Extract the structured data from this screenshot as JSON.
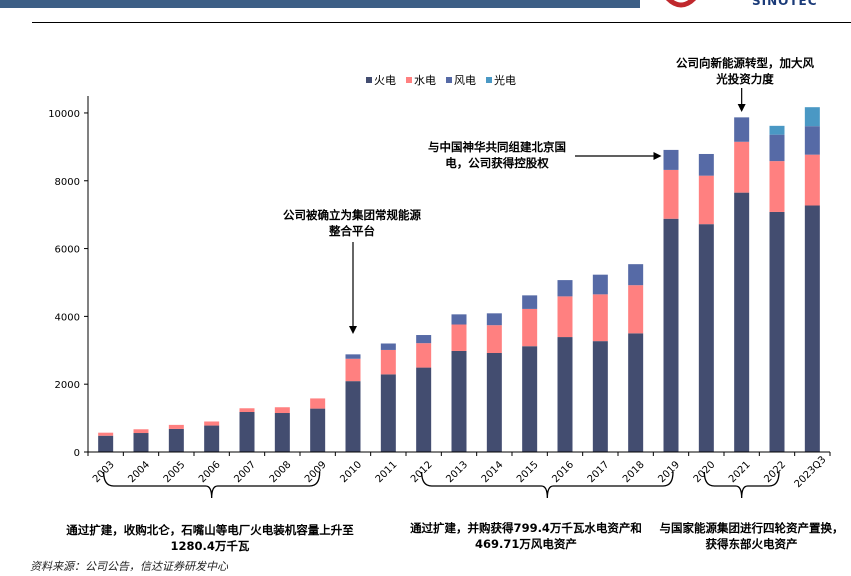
{
  "header": {
    "logo_text": "SINOTEC"
  },
  "chart_data": {
    "type": "bar",
    "stacked": true,
    "categories": [
      "2003",
      "2004",
      "2005",
      "2006",
      "2007",
      "2008",
      "2009",
      "2010",
      "2011",
      "2012",
      "2013",
      "2014",
      "2015",
      "2016",
      "2017",
      "2018",
      "2019",
      "2020",
      "2021",
      "2022",
      "2023Q3"
    ],
    "series": [
      {
        "name": "火电",
        "color": "#434d70",
        "values": [
          480,
          560,
          680,
          780,
          1180,
          1150,
          1280,
          2090,
          2290,
          2490,
          2980,
          2920,
          3120,
          3390,
          3270,
          3500,
          6880,
          6720,
          7650,
          7080,
          7270
        ]
      },
      {
        "name": "水电",
        "color": "#ff8080",
        "values": [
          90,
          110,
          120,
          120,
          110,
          170,
          300,
          660,
          720,
          720,
          780,
          820,
          1100,
          1200,
          1380,
          1420,
          1440,
          1430,
          1500,
          1500,
          1500
        ]
      },
      {
        "name": "风电",
        "color": "#566aa6",
        "values": [
          0,
          0,
          0,
          0,
          0,
          0,
          0,
          130,
          190,
          240,
          300,
          350,
          400,
          480,
          580,
          620,
          590,
          640,
          720,
          780,
          840
        ]
      },
      {
        "name": "光电",
        "color": "#4a98c4",
        "values": [
          0,
          0,
          0,
          0,
          0,
          0,
          0,
          0,
          0,
          0,
          0,
          0,
          0,
          0,
          0,
          0,
          0,
          0,
          0,
          260,
          560
        ]
      }
    ],
    "yticks": [
      0,
      2000,
      4000,
      6000,
      8000,
      10000
    ],
    "ylim": [
      0,
      10500
    ],
    "legend_position": "top-center",
    "annotations": [
      "公司被确立为集团常规能源整合平台",
      "与中国神华共同组建北京国电，公司获得控股权",
      "公司向新能源转型，加大风光投资力度"
    ]
  },
  "annotations": {
    "a2010_line1": "公司被确立为集团常规能源",
    "a2010_line2": "整合平台",
    "a2019_line1": "与中国神华共同组建北京国",
    "a2019_line2": "电，公司获得控股权",
    "a2021_line1": "公司向新能源转型，加大风",
    "a2021_line2": "光投资力度"
  },
  "notes": {
    "n1_line1": "通过扩建，收购北仑，石嘴山等电厂火电装机容量上升至",
    "n1_line2": "1280.4万千瓦",
    "n2_line1": "通过扩建，并购获得799.4万千瓦水电资产和",
    "n2_line2": "469.71万风电资产",
    "n3_line1": "与国家能源集团进行四轮资产置换，",
    "n3_line2": "获得东部火电资产"
  },
  "source": "资料来源：公司公告，信达证券研发中心"
}
